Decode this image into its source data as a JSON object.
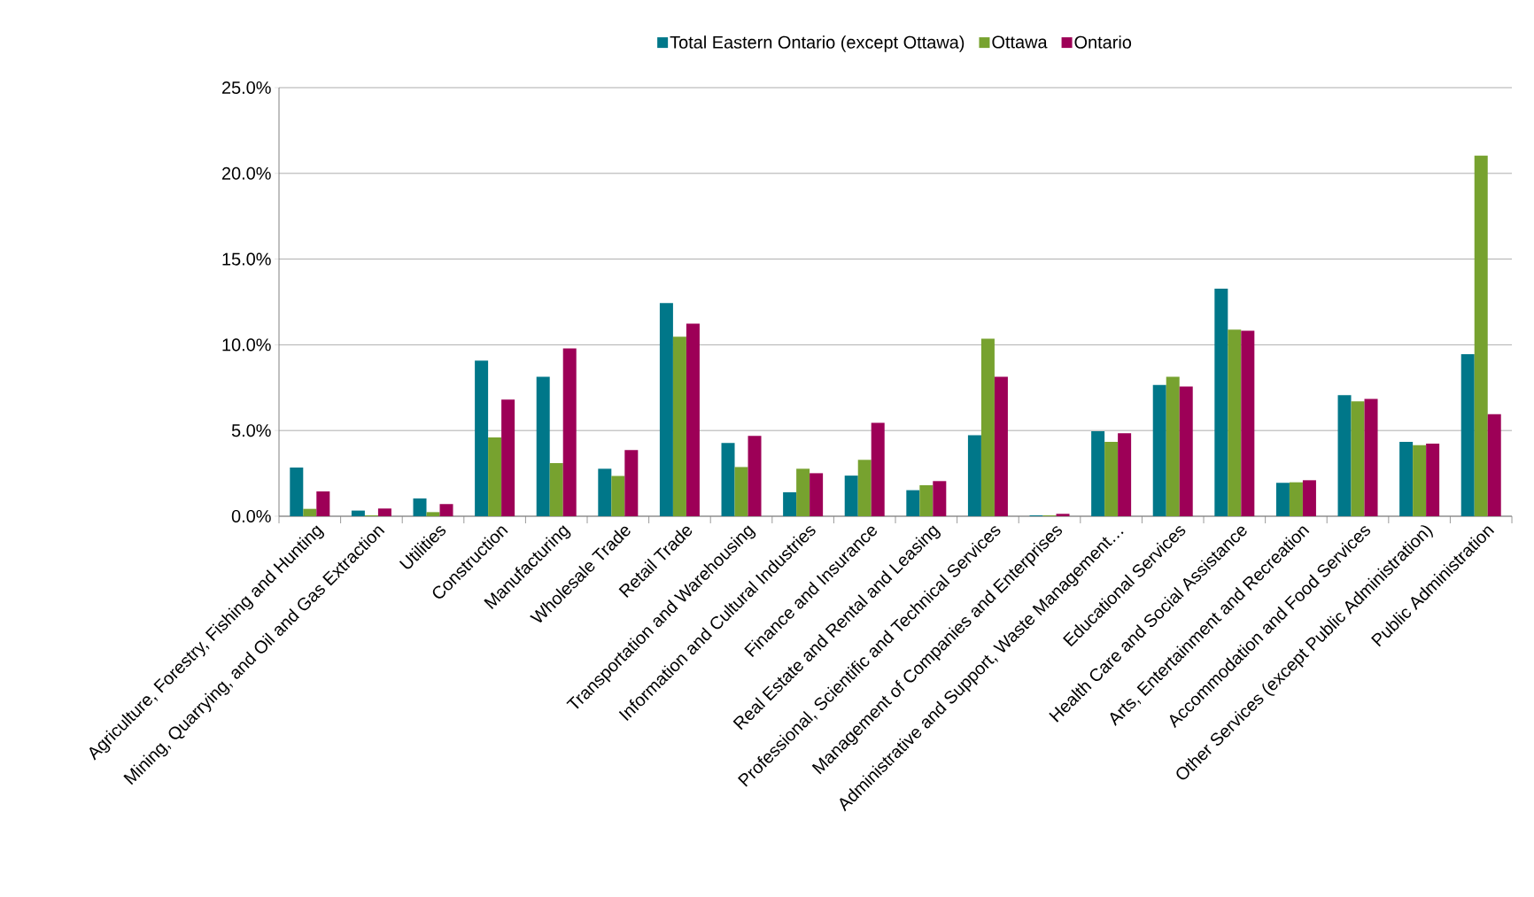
{
  "chart_data": {
    "type": "bar",
    "categories": [
      "Agriculture, Forestry, Fishing and Hunting",
      "Mining, Quarrying, and Oil and Gas Extraction",
      "Utilities",
      "Construction",
      "Manufacturing",
      "Wholesale Trade",
      "Retail Trade",
      "Transportation and Warehousing",
      "Information and Cultural Industries",
      "Finance and Insurance",
      "Real Estate and Rental and Leasing",
      "Professional, Scientific and Technical Services",
      "Management of Companies and Enterprises",
      "Administrative and Support, Waste Management…",
      "Educational Services",
      "Health Care and Social Assistance",
      "Arts, Entertainment and Recreation",
      "Accommodation and Food Services",
      "Other Services (except Public Administration)",
      "Public Administration"
    ],
    "series": [
      {
        "name": "Total Eastern Ontario (except Ottawa)",
        "color": "#007789",
        "values": [
          2.84,
          0.33,
          1.04,
          9.08,
          8.13,
          2.77,
          12.44,
          4.27,
          1.4,
          2.37,
          1.52,
          4.72,
          0.05,
          4.96,
          7.66,
          13.28,
          1.95,
          7.06,
          4.34,
          9.45
        ]
      },
      {
        "name": "Ottawa",
        "color": "#77a22f",
        "values": [
          0.43,
          0.05,
          0.24,
          4.6,
          3.1,
          2.35,
          10.47,
          2.87,
          2.77,
          3.29,
          1.81,
          10.36,
          0.05,
          4.34,
          8.14,
          10.89,
          1.98,
          6.7,
          4.14,
          21.04
        ]
      },
      {
        "name": "Ontario",
        "color": "#9d0057",
        "values": [
          1.45,
          0.45,
          0.71,
          6.8,
          9.79,
          3.86,
          11.23,
          4.69,
          2.51,
          5.45,
          2.05,
          8.14,
          0.14,
          4.84,
          7.57,
          10.82,
          2.1,
          6.84,
          4.24,
          5.95
        ]
      }
    ],
    "ylim": [
      0,
      25
    ],
    "yticks": [
      {
        "value": 0,
        "label": "0.0%"
      },
      {
        "value": 5,
        "label": "5.0%"
      },
      {
        "value": 10,
        "label": "10.0%"
      },
      {
        "value": 15,
        "label": "15.0%"
      },
      {
        "value": 20,
        "label": "20.0%"
      },
      {
        "value": 25,
        "label": "25.0%"
      }
    ],
    "grid": "y",
    "legend": "top"
  }
}
